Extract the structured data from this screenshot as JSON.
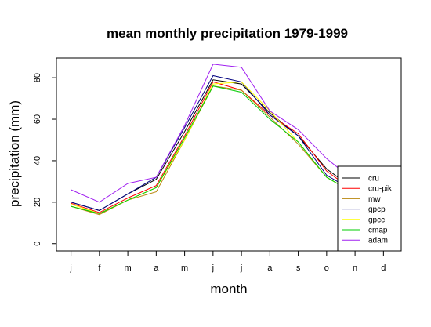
{
  "chart_data": {
    "type": "line",
    "title": "mean monthly precipitation 1979-1999",
    "xlabel": "month",
    "ylabel": "precipitation (mm)",
    "categories": [
      "j",
      "f",
      "m",
      "a",
      "m",
      "j",
      "j",
      "a",
      "s",
      "o",
      "n",
      "d"
    ],
    "yticks": [
      0,
      20,
      40,
      60,
      80
    ],
    "ylim": [
      -3.5,
      89.5
    ],
    "legend_position": "bottom-right",
    "series": [
      {
        "name": "cru",
        "color": "#000000",
        "values": [
          20,
          16,
          24,
          31,
          54,
          79,
          77,
          63,
          52,
          36,
          26,
          20
        ]
      },
      {
        "name": "cru-pik",
        "color": "#ff0000",
        "values": [
          19.5,
          15,
          22,
          28,
          52,
          78,
          74,
          62,
          53,
          35,
          25,
          20
        ]
      },
      {
        "name": "mw",
        "color": "#b8860b",
        "values": [
          18,
          14,
          21,
          25,
          50,
          76,
          74,
          61,
          48,
          32,
          24,
          19
        ]
      },
      {
        "name": "gpcp",
        "color": "#000080",
        "values": [
          20,
          16,
          24,
          32,
          56,
          81,
          78,
          62,
          52,
          33,
          25,
          20
        ]
      },
      {
        "name": "gpcc",
        "color": "#ffff00",
        "values": [
          19,
          14.5,
          21,
          27,
          50,
          77,
          78,
          64,
          49,
          32,
          24,
          19
        ]
      },
      {
        "name": "cmap",
        "color": "#00cc00",
        "values": [
          18,
          14.5,
          21,
          27,
          51,
          76,
          73,
          60,
          49,
          32,
          24,
          19
        ]
      },
      {
        "name": "adam",
        "color": "#a020f0",
        "values": [
          26,
          20,
          29,
          32,
          57,
          86.5,
          85,
          64,
          55,
          41,
          30,
          25
        ]
      }
    ]
  }
}
